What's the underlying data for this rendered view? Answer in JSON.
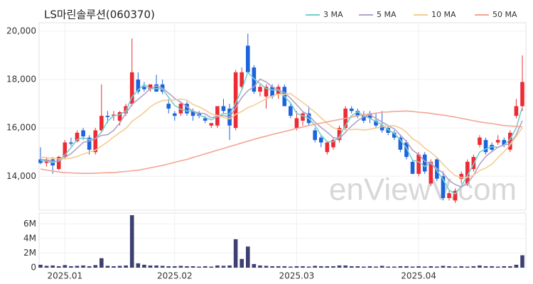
{
  "chart_data": {
    "type": "candlestick",
    "title": "LS마린솔루션(060370)",
    "watermark": "enViewV.com",
    "up_color": "#ec2b34",
    "down_color": "#1c63dc",
    "volume_color": "#3d4070",
    "categories": [
      null,
      null,
      null,
      null,
      "2025.01",
      null,
      null,
      null,
      null,
      null,
      null,
      null,
      null,
      null,
      null,
      null,
      null,
      null,
      null,
      null,
      null,
      null,
      "2025.02",
      null,
      null,
      null,
      null,
      null,
      null,
      null,
      null,
      null,
      null,
      null,
      null,
      null,
      null,
      null,
      null,
      null,
      null,
      null,
      "2025.03",
      null,
      null,
      null,
      null,
      null,
      null,
      null,
      null,
      null,
      null,
      null,
      null,
      null,
      null,
      null,
      null,
      null,
      null,
      null,
      "2025.04",
      null,
      null,
      null,
      null,
      null,
      null,
      null,
      null,
      null,
      null,
      null,
      null,
      null,
      null,
      null,
      null,
      null
    ],
    "open": [
      14700,
      14550,
      14700,
      14300,
      14800,
      15400,
      15450,
      15900,
      15600,
      15000,
      15900,
      16500,
      16500,
      16300,
      16600,
      17000,
      18000,
      17700,
      17600,
      17800,
      17800,
      17000,
      16600,
      16600,
      17000,
      16700,
      16600,
      16400,
      16100,
      16100,
      16900,
      16800,
      16000,
      17700,
      19400,
      18500,
      17500,
      17300,
      17700,
      17400,
      17700,
      16900,
      16000,
      16300,
      16600,
      15900,
      15600,
      15000,
      15200,
      15500,
      16000,
      16800,
      16700,
      16500,
      16600,
      16300,
      16100,
      16000,
      15800,
      15600,
      15400,
      14600,
      14100,
      14900,
      13700,
      14700,
      14000,
      13100,
      13000,
      13900,
      13700,
      14300,
      15300,
      15500,
      15300,
      15400,
      15500,
      15100,
      16500,
      16900
    ],
    "high": [
      15200,
      14800,
      14800,
      14850,
      15500,
      15600,
      15900,
      16000,
      15700,
      16000,
      17800,
      16700,
      16700,
      16700,
      17000,
      19700,
      18300,
      17900,
      17800,
      18200,
      18000,
      17200,
      16700,
      17100,
      17100,
      16800,
      16700,
      16500,
      16200,
      16900,
      17200,
      17000,
      18400,
      18500,
      19900,
      18600,
      17800,
      17800,
      17800,
      17800,
      17800,
      17000,
      16700,
      16700,
      16900,
      16000,
      15700,
      15400,
      15600,
      16100,
      16900,
      16900,
      16800,
      16700,
      16700,
      16600,
      16700,
      16100,
      15900,
      15700,
      15500,
      14700,
      15000,
      15000,
      14700,
      14800,
      14200,
      13400,
      13500,
      14200,
      14700,
      14900,
      15700,
      15600,
      15400,
      15700,
      15600,
      15900,
      17200,
      19000
    ],
    "low": [
      14500,
      14400,
      14100,
      14250,
      14700,
      15250,
      15400,
      15500,
      14900,
      14900,
      15800,
      16200,
      16300,
      16100,
      16500,
      16900,
      17400,
      17500,
      17500,
      17500,
      17400,
      16600,
      16300,
      16500,
      16500,
      16300,
      16400,
      16200,
      16000,
      16000,
      16600,
      15500,
      15900,
      17600,
      18300,
      17400,
      17300,
      16800,
      17200,
      17200,
      16900,
      16400,
      15900,
      16100,
      16100,
      15400,
      15200,
      14900,
      15100,
      15400,
      15900,
      16600,
      16400,
      16200,
      16200,
      16000,
      15800,
      15700,
      15500,
      15000,
      14700,
      14100,
      14000,
      14100,
      13600,
      13800,
      13000,
      13000,
      12900,
      13700,
      13600,
      14200,
      15200,
      14900,
      15000,
      15300,
      15200,
      15000,
      16400,
      16700
    ],
    "close": [
      14550,
      14700,
      14450,
      14800,
      15400,
      15350,
      15800,
      15650,
      15100,
      15900,
      16500,
      16450,
      16550,
      16650,
      16900,
      18300,
      17500,
      17600,
      17800,
      17500,
      17500,
      16800,
      16500,
      17000,
      16600,
      16500,
      16500,
      16300,
      16200,
      16900,
      16700,
      16100,
      18300,
      18300,
      18300,
      17500,
      17700,
      17700,
      17300,
      17700,
      16900,
      16500,
      16400,
      16600,
      16200,
      15500,
      15400,
      15400,
      15500,
      16000,
      16800,
      16700,
      16500,
      16300,
      16400,
      16100,
      15900,
      15800,
      15600,
      15100,
      14800,
      14100,
      14900,
      14200,
      14600,
      13900,
      13100,
      13300,
      13400,
      14100,
      14600,
      14800,
      15600,
      15000,
      15100,
      15500,
      15300,
      15800,
      16900,
      17900
    ],
    "volume": [
      400000,
      250000,
      300000,
      200000,
      350000,
      200000,
      250000,
      300000,
      200000,
      350000,
      1300000,
      250000,
      200000,
      250000,
      300000,
      7200000,
      600000,
      400000,
      300000,
      300000,
      250000,
      200000,
      200000,
      250000,
      200000,
      200000,
      150000,
      200000,
      150000,
      300000,
      250000,
      300000,
      3900000,
      1200000,
      2900000,
      500000,
      300000,
      250000,
      200000,
      200000,
      200000,
      150000,
      200000,
      200000,
      150000,
      250000,
      200000,
      200000,
      200000,
      300000,
      300000,
      200000,
      200000,
      150000,
      200000,
      150000,
      250000,
      150000,
      150000,
      200000,
      200000,
      150000,
      200000,
      150000,
      200000,
      150000,
      250000,
      200000,
      150000,
      200000,
      150000,
      200000,
      300000,
      200000,
      200000,
      150000,
      200000,
      200000,
      400000,
      1700000
    ],
    "series": [
      {
        "name": "3 MA",
        "color": "#72cfcc",
        "values": [
          14650,
          14620,
          14570,
          14650,
          14880,
          15180,
          15520,
          15600,
          15520,
          15550,
          15830,
          16280,
          16500,
          16550,
          16700,
          17280,
          17570,
          17800,
          17630,
          17630,
          17600,
          17270,
          16930,
          16770,
          16700,
          16700,
          16530,
          16430,
          16330,
          16470,
          16600,
          16570,
          17030,
          17570,
          18300,
          18030,
          17830,
          17630,
          17570,
          17570,
          17300,
          17030,
          16600,
          16500,
          16400,
          16100,
          15700,
          15430,
          15430,
          15630,
          16100,
          16500,
          16670,
          16500,
          16400,
          16270,
          16130,
          15930,
          15770,
          15500,
          15170,
          14670,
          14600,
          14400,
          14570,
          14230,
          13870,
          13430,
          13270,
          13600,
          14030,
          14500,
          15000,
          15130,
          15230,
          15200,
          15300,
          15530,
          16000,
          16870
        ]
      },
      {
        "name": "5 MA",
        "color": "#b5a0c8",
        "values": [
          14700,
          14680,
          14620,
          14620,
          14780,
          14940,
          15160,
          15400,
          15460,
          15560,
          15690,
          15720,
          15900,
          16210,
          16610,
          16970,
          17180,
          17390,
          17620,
          17740,
          17640,
          17440,
          17220,
          17060,
          16880,
          16680,
          16620,
          16580,
          16420,
          16480,
          16520,
          16440,
          16840,
          17260,
          17540,
          17700,
          18020,
          17900,
          17700,
          17580,
          17460,
          17220,
          16960,
          16680,
          16520,
          16240,
          16020,
          15820,
          15600,
          15560,
          15820,
          16080,
          16300,
          16460,
          16540,
          16400,
          16240,
          16100,
          15960,
          15700,
          15440,
          15080,
          14900,
          14620,
          14520,
          14320,
          14140,
          13820,
          13660,
          13560,
          13700,
          14040,
          14500,
          14820,
          15020,
          15200,
          15300,
          15340,
          15720,
          16300
        ]
      },
      {
        "name": "10 MA",
        "color": "#f5cc92",
        "values": [
          14800,
          14770,
          14750,
          14720,
          14730,
          14750,
          14820,
          14920,
          15000,
          15080,
          15250,
          15420,
          15630,
          15810,
          15980,
          16270,
          16450,
          16640,
          16870,
          17030,
          17130,
          17160,
          17160,
          17190,
          17150,
          16970,
          16870,
          16740,
          16580,
          16520,
          16440,
          16370,
          16560,
          16680,
          16840,
          16940,
          17070,
          17200,
          17320,
          17400,
          17390,
          17420,
          17230,
          17060,
          16850,
          16650,
          16420,
          16190,
          16010,
          15930,
          15920,
          15930,
          15940,
          15910,
          15940,
          16000,
          16050,
          16090,
          16090,
          16000,
          15820,
          15560,
          15400,
          15170,
          14990,
          14780,
          14500,
          14250,
          14030,
          13950,
          13960,
          14040,
          14240,
          14340,
          14500,
          14770,
          15020,
          15300,
          15650,
          16010
        ]
      },
      {
        "name": "50 MA",
        "color": "#f2a592",
        "values": [
          14300,
          14260,
          14220,
          14180,
          14150,
          14140,
          14130,
          14120,
          14120,
          14130,
          14140,
          14150,
          14150,
          14180,
          14200,
          14230,
          14250,
          14300,
          14350,
          14400,
          14450,
          14510,
          14580,
          14640,
          14700,
          14780,
          14850,
          14930,
          15000,
          15080,
          15150,
          15230,
          15300,
          15380,
          15450,
          15530,
          15600,
          15660,
          15730,
          15790,
          15850,
          15910,
          15980,
          16040,
          16100,
          16150,
          16200,
          16250,
          16300,
          16350,
          16400,
          16450,
          16500,
          16540,
          16580,
          16610,
          16650,
          16660,
          16680,
          16690,
          16700,
          16680,
          16650,
          16630,
          16600,
          16560,
          16530,
          16490,
          16450,
          16400,
          16350,
          16300,
          16250,
          16210,
          16180,
          16140,
          16100,
          16080,
          16060,
          16050
        ]
      }
    ],
    "ylim": [
      12600,
      20350
    ],
    "yticks": [
      {
        "value": 14000,
        "label": "14,000"
      },
      {
        "value": 16000,
        "label": "16,000"
      },
      {
        "value": 18000,
        "label": "18,000"
      },
      {
        "value": 20000,
        "label": "20,000"
      }
    ],
    "volume_ylim": [
      0,
      7500000
    ],
    "volume_yticks": [
      0,
      {
        "value": 2000000,
        "label": "2M"
      },
      {
        "value": 4000000,
        "label": "4M"
      },
      {
        "value": 6000000,
        "label": "6M"
      }
    ],
    "grid": true,
    "legend": "top-right"
  }
}
